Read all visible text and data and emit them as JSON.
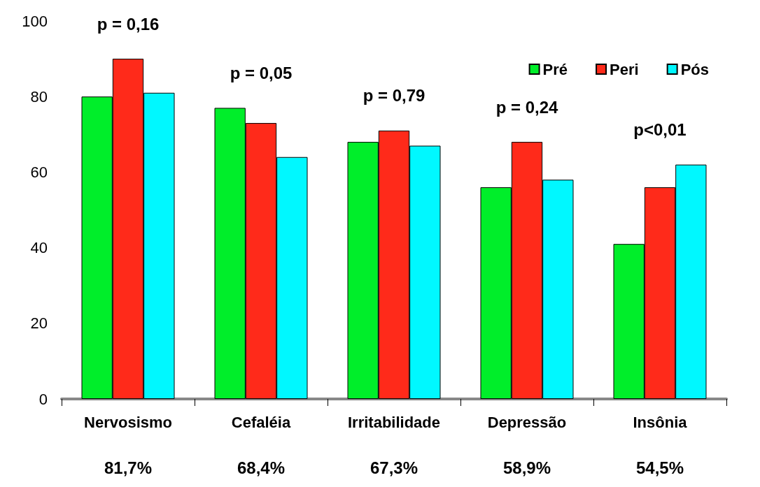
{
  "chart_data": {
    "type": "bar",
    "categories": [
      "Nervosismo",
      "Cefaléia",
      "Irritabilidade",
      "Depressão",
      "Insônia"
    ],
    "series": [
      {
        "name": "Pré",
        "color": "#00ee2a",
        "values": [
          80,
          77,
          68,
          56,
          41
        ]
      },
      {
        "name": "Peri",
        "color": "#ff2a1a",
        "values": [
          90,
          73,
          71,
          68,
          56
        ]
      },
      {
        "name": "Pós",
        "color": "#00f8ff",
        "values": [
          81,
          64,
          67,
          58,
          62
        ]
      }
    ],
    "ylim": [
      0,
      100
    ],
    "yticks": [
      0,
      20,
      40,
      60,
      80,
      100
    ],
    "grid": false,
    "legend": "top right",
    "annotations": [
      "p = 0,16",
      "p = 0,05",
      "p = 0,79",
      "p = 0,24",
      "p<0,01",
      "81,7%",
      "68,4%",
      "67,3%",
      "58,9%",
      "54,5%"
    ]
  }
}
